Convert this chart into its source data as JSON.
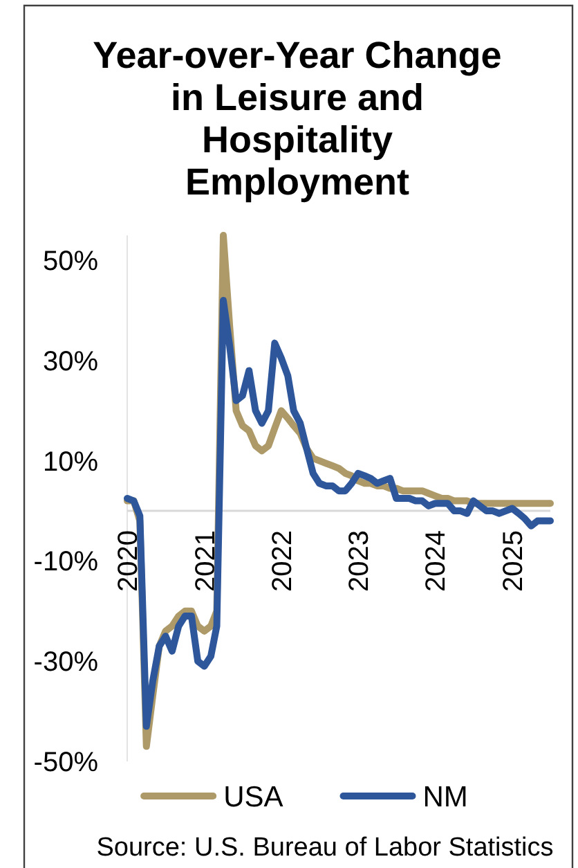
{
  "chart_data": {
    "type": "line",
    "title": "Year-over-Year Change in Leisure and Hospitality Employment",
    "x": [
      "2020-01",
      "2020-02",
      "2020-03",
      "2020-04",
      "2020-05",
      "2020-06",
      "2020-07",
      "2020-08",
      "2020-09",
      "2020-10",
      "2020-11",
      "2020-12",
      "2021-01",
      "2021-02",
      "2021-03",
      "2021-04",
      "2021-05",
      "2021-06",
      "2021-07",
      "2021-08",
      "2021-09",
      "2021-10",
      "2021-11",
      "2021-12",
      "2022-01",
      "2022-02",
      "2022-03",
      "2022-04",
      "2022-05",
      "2022-06",
      "2022-07",
      "2022-08",
      "2022-09",
      "2022-10",
      "2022-11",
      "2022-12",
      "2023-01",
      "2023-02",
      "2023-03",
      "2023-04",
      "2023-05",
      "2023-06",
      "2023-07",
      "2023-08",
      "2023-09",
      "2023-10",
      "2023-11",
      "2023-12",
      "2024-01",
      "2024-02",
      "2024-03",
      "2024-04",
      "2024-05",
      "2024-06",
      "2024-07",
      "2024-08",
      "2024-09",
      "2024-10",
      "2024-11",
      "2024-12",
      "2025-01",
      "2025-02",
      "2025-03",
      "2025-04",
      "2025-05",
      "2025-06",
      "2025-07"
    ],
    "series": [
      {
        "name": "USA",
        "color": "#ad9a68",
        "values": [
          2,
          2,
          -2,
          -47,
          -37,
          -27,
          -24,
          -23,
          -21,
          -20,
          -20,
          -23,
          -24,
          -23,
          -20,
          55,
          37,
          20,
          17,
          16,
          13,
          12,
          13,
          16.5,
          20,
          18.5,
          17,
          15.5,
          12.5,
          10.5,
          10,
          9.5,
          9,
          8.5,
          7.5,
          7,
          6,
          5.5,
          5.5,
          5,
          5,
          4.5,
          4.5,
          4,
          4,
          4,
          4,
          3.5,
          3,
          2.5,
          2.5,
          2,
          2,
          2,
          1.5,
          1.5,
          1.5,
          1.5,
          1.5,
          1.5,
          1.5,
          1.5,
          1.5,
          1.5,
          1.5,
          1.5,
          1.5
        ]
      },
      {
        "name": "NM",
        "color": "#2e569b",
        "values": [
          2.5,
          2,
          -1,
          -43,
          -34,
          -27,
          -25,
          -28,
          -23,
          -21,
          -21,
          -30,
          -31,
          -29,
          -23,
          42,
          33,
          22,
          23,
          28,
          20,
          17.5,
          20,
          33.5,
          30.5,
          27,
          20,
          17.5,
          12.5,
          7.5,
          5.5,
          5,
          5,
          4,
          4,
          5.5,
          7.5,
          7,
          6.5,
          5.5,
          6,
          6.5,
          2.5,
          2.5,
          2.5,
          2,
          2,
          1,
          1.5,
          1.5,
          1.5,
          0,
          0,
          -0.5,
          2,
          1,
          0,
          0,
          -0.5,
          0,
          0.5,
          -0.5,
          -1.5,
          -3,
          -2,
          -2,
          -2
        ]
      }
    ],
    "xlim": [
      "2020-01",
      "2025-07"
    ],
    "xticks": [
      "2020",
      "2021",
      "2022",
      "2023",
      "2024",
      "2025"
    ],
    "ylim": [
      -50,
      55
    ],
    "yticks": [
      {
        "value": -50,
        "label": "-50%"
      },
      {
        "value": -30,
        "label": "-30%"
      },
      {
        "value": -10,
        "label": "-10%"
      },
      {
        "value": 10,
        "label": "10%"
      },
      {
        "value": 30,
        "label": "30%"
      },
      {
        "value": 50,
        "label": "50%"
      }
    ],
    "legend": "bottom",
    "annotations": [
      "Source: U.S. Bureau of Labor Statistics"
    ]
  }
}
